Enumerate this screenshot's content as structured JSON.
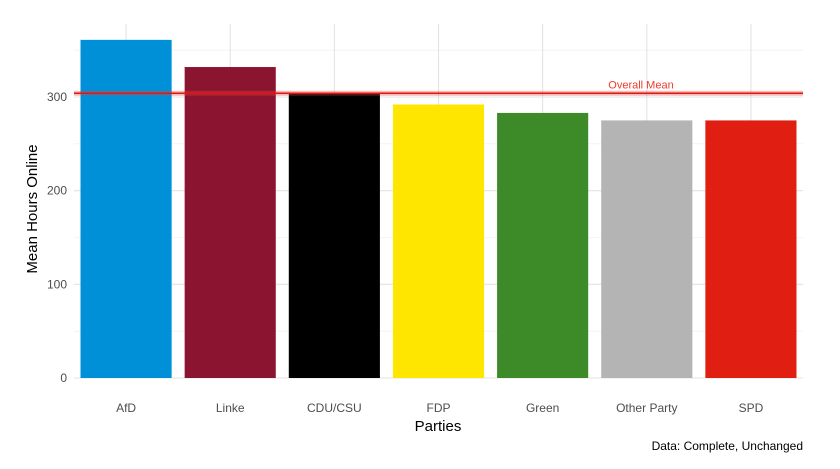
{
  "chart_data": {
    "type": "bar",
    "categories": [
      "AfD",
      "Linke",
      "CDU/CSU",
      "FDP",
      "Green",
      "Other Party",
      "SPD"
    ],
    "values": [
      361,
      332,
      304,
      292,
      283,
      275,
      275
    ],
    "colors": [
      "#0090d8",
      "#8b1530",
      "#000000",
      "#ffe600",
      "#3d8b28",
      "#b4b4b4",
      "#e01e12"
    ],
    "xlabel": "Parties",
    "ylabel": "Mean Hours Online",
    "ylim": [
      0,
      375
    ],
    "yticks": [
      0,
      100,
      200,
      300
    ],
    "grid": true,
    "reference_line": {
      "value": 304,
      "label": "Overall Mean",
      "color": "#ef3b2c"
    },
    "caption": "Data: Complete, Unchanged"
  }
}
